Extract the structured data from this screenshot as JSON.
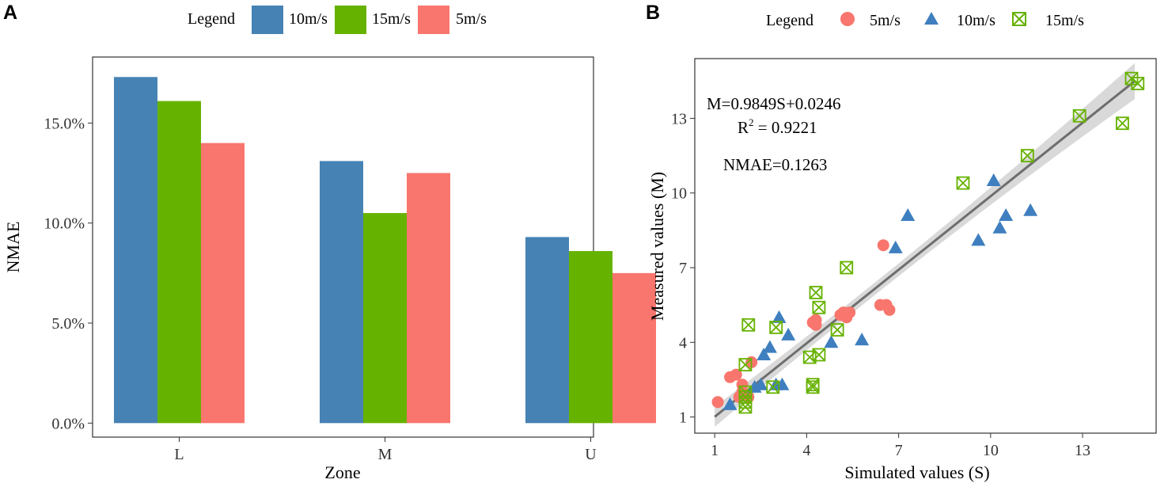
{
  "panels": {
    "a": "A",
    "b": "B"
  },
  "chart_data": [
    {
      "type": "bar",
      "panel": "A",
      "legend_title": "Legend",
      "categories": [
        "L",
        "M",
        "U"
      ],
      "series": [
        {
          "name": "10m/s",
          "color": "#4682B4",
          "values": [
            17.3,
            13.1,
            9.3
          ]
        },
        {
          "name": "15m/s",
          "color": "#66B200",
          "values": [
            16.1,
            10.5,
            8.6
          ]
        },
        {
          "name": "5m/s",
          "color": "#F8766D",
          "values": [
            14.0,
            12.5,
            7.5
          ]
        }
      ],
      "xlabel": "Zone",
      "ylabel": "NMAE",
      "ylim": [
        -0.7,
        18.3
      ],
      "yticks": [
        0,
        5,
        10,
        15
      ],
      "ytick_labels": [
        "0.0%",
        "5.0%",
        "10.0%",
        "15.0%"
      ]
    },
    {
      "type": "scatter",
      "panel": "B",
      "legend_title": "Legend",
      "series": [
        {
          "name": "5m/s",
          "color": "#F8766D",
          "marker": "circle",
          "points": [
            [
              1.1,
              1.6
            ],
            [
              1.5,
              2.6
            ],
            [
              1.7,
              2.7
            ],
            [
              1.8,
              1.8
            ],
            [
              1.9,
              2.0
            ],
            [
              1.9,
              2.3
            ],
            [
              2.1,
              1.8
            ],
            [
              2.2,
              3.2
            ],
            [
              4.2,
              4.8
            ],
            [
              4.3,
              4.7
            ],
            [
              4.3,
              4.9
            ],
            [
              5.1,
              5.1
            ],
            [
              5.2,
              5.2
            ],
            [
              5.3,
              5.0
            ],
            [
              5.4,
              5.2
            ],
            [
              6.4,
              5.5
            ],
            [
              6.5,
              7.9
            ],
            [
              6.6,
              5.5
            ],
            [
              6.7,
              5.3
            ]
          ]
        },
        {
          "name": "10m/s",
          "color": "#3F7FBF",
          "marker": "triangle",
          "points": [
            [
              1.5,
              1.5
            ],
            [
              2.3,
              2.2
            ],
            [
              2.5,
              2.3
            ],
            [
              2.6,
              3.5
            ],
            [
              2.8,
              3.8
            ],
            [
              3.0,
              2.3
            ],
            [
              3.1,
              5.0
            ],
            [
              3.2,
              2.3
            ],
            [
              3.4,
              4.3
            ],
            [
              4.8,
              4.0
            ],
            [
              5.8,
              4.1
            ],
            [
              6.9,
              7.8
            ],
            [
              7.3,
              9.1
            ],
            [
              9.6,
              8.1
            ],
            [
              10.1,
              10.5
            ],
            [
              10.3,
              8.6
            ],
            [
              10.5,
              9.1
            ],
            [
              11.3,
              9.3
            ]
          ]
        },
        {
          "name": "15m/s",
          "color": "#66B200",
          "marker": "boxx",
          "points": [
            [
              2.0,
              1.4
            ],
            [
              2.0,
              1.6
            ],
            [
              2.0,
              1.8
            ],
            [
              2.0,
              2.0
            ],
            [
              2.0,
              3.1
            ],
            [
              2.1,
              4.7
            ],
            [
              2.9,
              2.2
            ],
            [
              3.0,
              4.6
            ],
            [
              4.1,
              3.4
            ],
            [
              4.2,
              2.2
            ],
            [
              4.2,
              2.3
            ],
            [
              4.3,
              6.0
            ],
            [
              4.4,
              3.5
            ],
            [
              4.4,
              5.4
            ],
            [
              5.0,
              4.5
            ],
            [
              5.3,
              7.0
            ],
            [
              9.1,
              10.4
            ],
            [
              11.2,
              11.5
            ],
            [
              12.9,
              13.1
            ],
            [
              14.3,
              12.8
            ],
            [
              14.6,
              14.6
            ],
            [
              14.8,
              14.4
            ]
          ]
        }
      ],
      "regression": {
        "x": [
          1.0,
          14.7
        ],
        "y": [
          1.0094,
          14.4956
        ]
      },
      "annotations": {
        "equation": "M=0.9849S+0.0246",
        "r2_label": "R",
        "r2_sup": "2",
        "r2_value": " = 0.9221",
        "nmae": "NMAE=0.1263"
      },
      "xlabel": "Simulated values (S)",
      "ylabel": "Measured values (M)",
      "xlim": [
        0.35,
        15.4
      ],
      "ylim": [
        0.35,
        15.4
      ],
      "xticks": [
        1,
        4,
        7,
        10,
        13
      ],
      "yticks": [
        1,
        4,
        7,
        10,
        13
      ]
    }
  ]
}
